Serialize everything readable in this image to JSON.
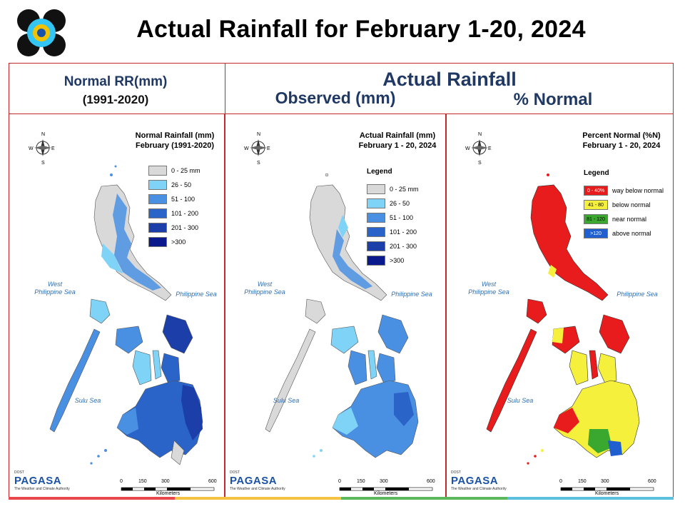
{
  "title": "Actual Rainfall for February 1-20, 2024",
  "headers": {
    "normal_line1": "Normal RR(mm)",
    "normal_line2": "(1991-2020)",
    "actual": "Actual Rainfall",
    "observed": "Observed (mm)",
    "percent": "% Normal"
  },
  "panels": [
    {
      "title_line1": "Normal Rainfall (mm)",
      "title_line2": "February (1991-2020)",
      "legend_title": "",
      "legend": [
        {
          "label": "0 - 25 mm",
          "color": "#d9d9d9"
        },
        {
          "label": "26 - 50",
          "color": "#7fd3f7"
        },
        {
          "label": "51 - 100",
          "color": "#4a90e2"
        },
        {
          "label": "101 - 200",
          "color": "#2a64c8"
        },
        {
          "label": "201 - 300",
          "color": "#1c3ea8"
        },
        {
          "label": ">300",
          "color": "#0a1a8c"
        }
      ]
    },
    {
      "title_line1": "Actual Rainfall (mm)",
      "title_line2": "February 1 - 20, 2024",
      "legend_title": "Legend",
      "legend": [
        {
          "label": "0 - 25 mm",
          "color": "#d9d9d9"
        },
        {
          "label": "26 - 50",
          "color": "#7fd3f7"
        },
        {
          "label": "51 - 100",
          "color": "#4a90e2"
        },
        {
          "label": "101 - 200",
          "color": "#2a64c8"
        },
        {
          "label": "201 - 300",
          "color": "#1c3ea8"
        },
        {
          "label": ">300",
          "color": "#0a1a8c"
        }
      ]
    },
    {
      "title_line1": "Percent Normal (%N)",
      "title_line2": "February 1 - 20, 2024",
      "legend_title": "Legend",
      "legend": [
        {
          "swatch_text": "0 - 40%",
          "label": "way below normal",
          "color": "#e81c1c",
          "text_color": "#ffffff"
        },
        {
          "swatch_text": "41 - 80",
          "label": "below normal",
          "color": "#f5f03c",
          "text_color": "#000000"
        },
        {
          "swatch_text": "81 - 120",
          "label": "near normal",
          "color": "#3aa82e",
          "text_color": "#000000"
        },
        {
          "swatch_text": ">120",
          "label": "above normal",
          "color": "#1f5fd0",
          "text_color": "#ffffff"
        }
      ]
    }
  ],
  "map_labels": {
    "west_sea_1": "West",
    "west_sea_2": "Philippine Sea",
    "philippine_sea": "Philippine Sea",
    "sulu_sea": "Sulu Sea",
    "north": "N",
    "south": "S",
    "east": "E",
    "west": "W"
  },
  "scale": {
    "ticks": [
      "0",
      "150",
      "300",
      "600"
    ],
    "unit": "Kilometers"
  },
  "branding": {
    "pagasa": "PAGASA",
    "dost": "DOST",
    "tagline": "The Weather and Climate Authority"
  },
  "colors": {
    "frame": "#c0282c",
    "header_text": "#1f3864",
    "gray_land": "#d9d9d9",
    "footer_stripes": [
      "#e8474c",
      "#f5c242",
      "#5cb85c",
      "#5bc0de"
    ]
  }
}
